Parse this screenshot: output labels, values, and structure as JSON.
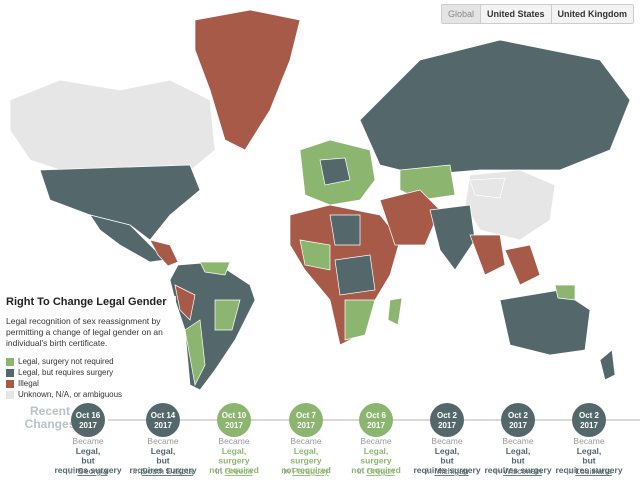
{
  "tabs": [
    "Global",
    "United States",
    "United Kingdom"
  ],
  "legend": {
    "title": "Right To Change Legal Gender",
    "description": "Legal recognition of sex reassignment by permitting a change of legal gender on an individual's birth certificate.",
    "items": [
      {
        "label": "Legal, surgery not required",
        "color": "#8cb66f"
      },
      {
        "label": "Legal, but requires surgery",
        "color": "#54686b"
      },
      {
        "label": "Illegal",
        "color": "#a85a48"
      },
      {
        "label": "Unknown, N/A, or ambiguous",
        "color": "#e6e6e6"
      }
    ]
  },
  "recent_changes": {
    "title": "Recent Changes",
    "items": [
      {
        "date": "Oct 16",
        "year": "2017",
        "became": "Became",
        "status": "Legal, but requires surgery",
        "in": "in",
        "place": "Georgia",
        "color": "#54686b"
      },
      {
        "date": "Oct 14",
        "year": "2017",
        "became": "Became",
        "status": "Legal, but requires surgery",
        "in": "in",
        "place": "South Dakota",
        "color": "#54686b"
      },
      {
        "date": "Oct 10",
        "year": "2017",
        "became": "Became",
        "status": "Legal, surgery not required",
        "in": "in",
        "place": "Greece",
        "color": "#8cb66f"
      },
      {
        "date": "Oct 7",
        "year": "2017",
        "became": "Became",
        "status": "Legal, surgery not required",
        "in": "in",
        "place": "Paraguay",
        "color": "#8cb66f"
      },
      {
        "date": "Oct 6",
        "year": "2017",
        "became": "Became",
        "status": "Legal, surgery not required",
        "in": "in",
        "place": "Oregon",
        "color": "#8cb66f"
      },
      {
        "date": "Oct 2",
        "year": "2017",
        "became": "Became",
        "status": "Legal, but requires surgery",
        "in": "in",
        "place": "Michigan",
        "color": "#54686b"
      },
      {
        "date": "Oct 2",
        "year": "2017",
        "became": "Became",
        "status": "Legal, but requires surgery",
        "in": "in",
        "place": "Wisconsin",
        "color": "#54686b"
      },
      {
        "date": "Oct 2",
        "year": "2017",
        "became": "Became",
        "status": "Legal, but requires surgery",
        "in": "in",
        "place": "Louisiana",
        "color": "#54686b"
      }
    ]
  }
}
